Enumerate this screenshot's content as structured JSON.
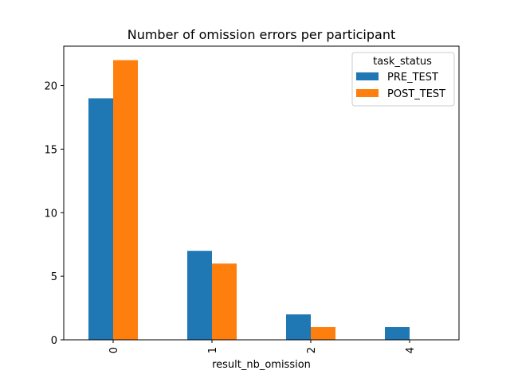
{
  "chart_data": {
    "type": "bar",
    "title": "Number of omission errors per participant",
    "xlabel": "result_nb_omission",
    "ylabel": "",
    "categories": [
      "0",
      "1",
      "2",
      "4"
    ],
    "series": [
      {
        "name": "PRE_TEST",
        "values": [
          19,
          7,
          2,
          1
        ],
        "color": "#1f77b4"
      },
      {
        "name": "POST_TEST",
        "values": [
          22,
          6,
          1,
          0
        ],
        "color": "#ff7f0e"
      }
    ],
    "ylim": [
      0,
      23.1
    ],
    "yticks": [
      0,
      5,
      10,
      15,
      20
    ],
    "legend": {
      "title": "task_status",
      "placement": "top-right"
    },
    "grid": false
  }
}
